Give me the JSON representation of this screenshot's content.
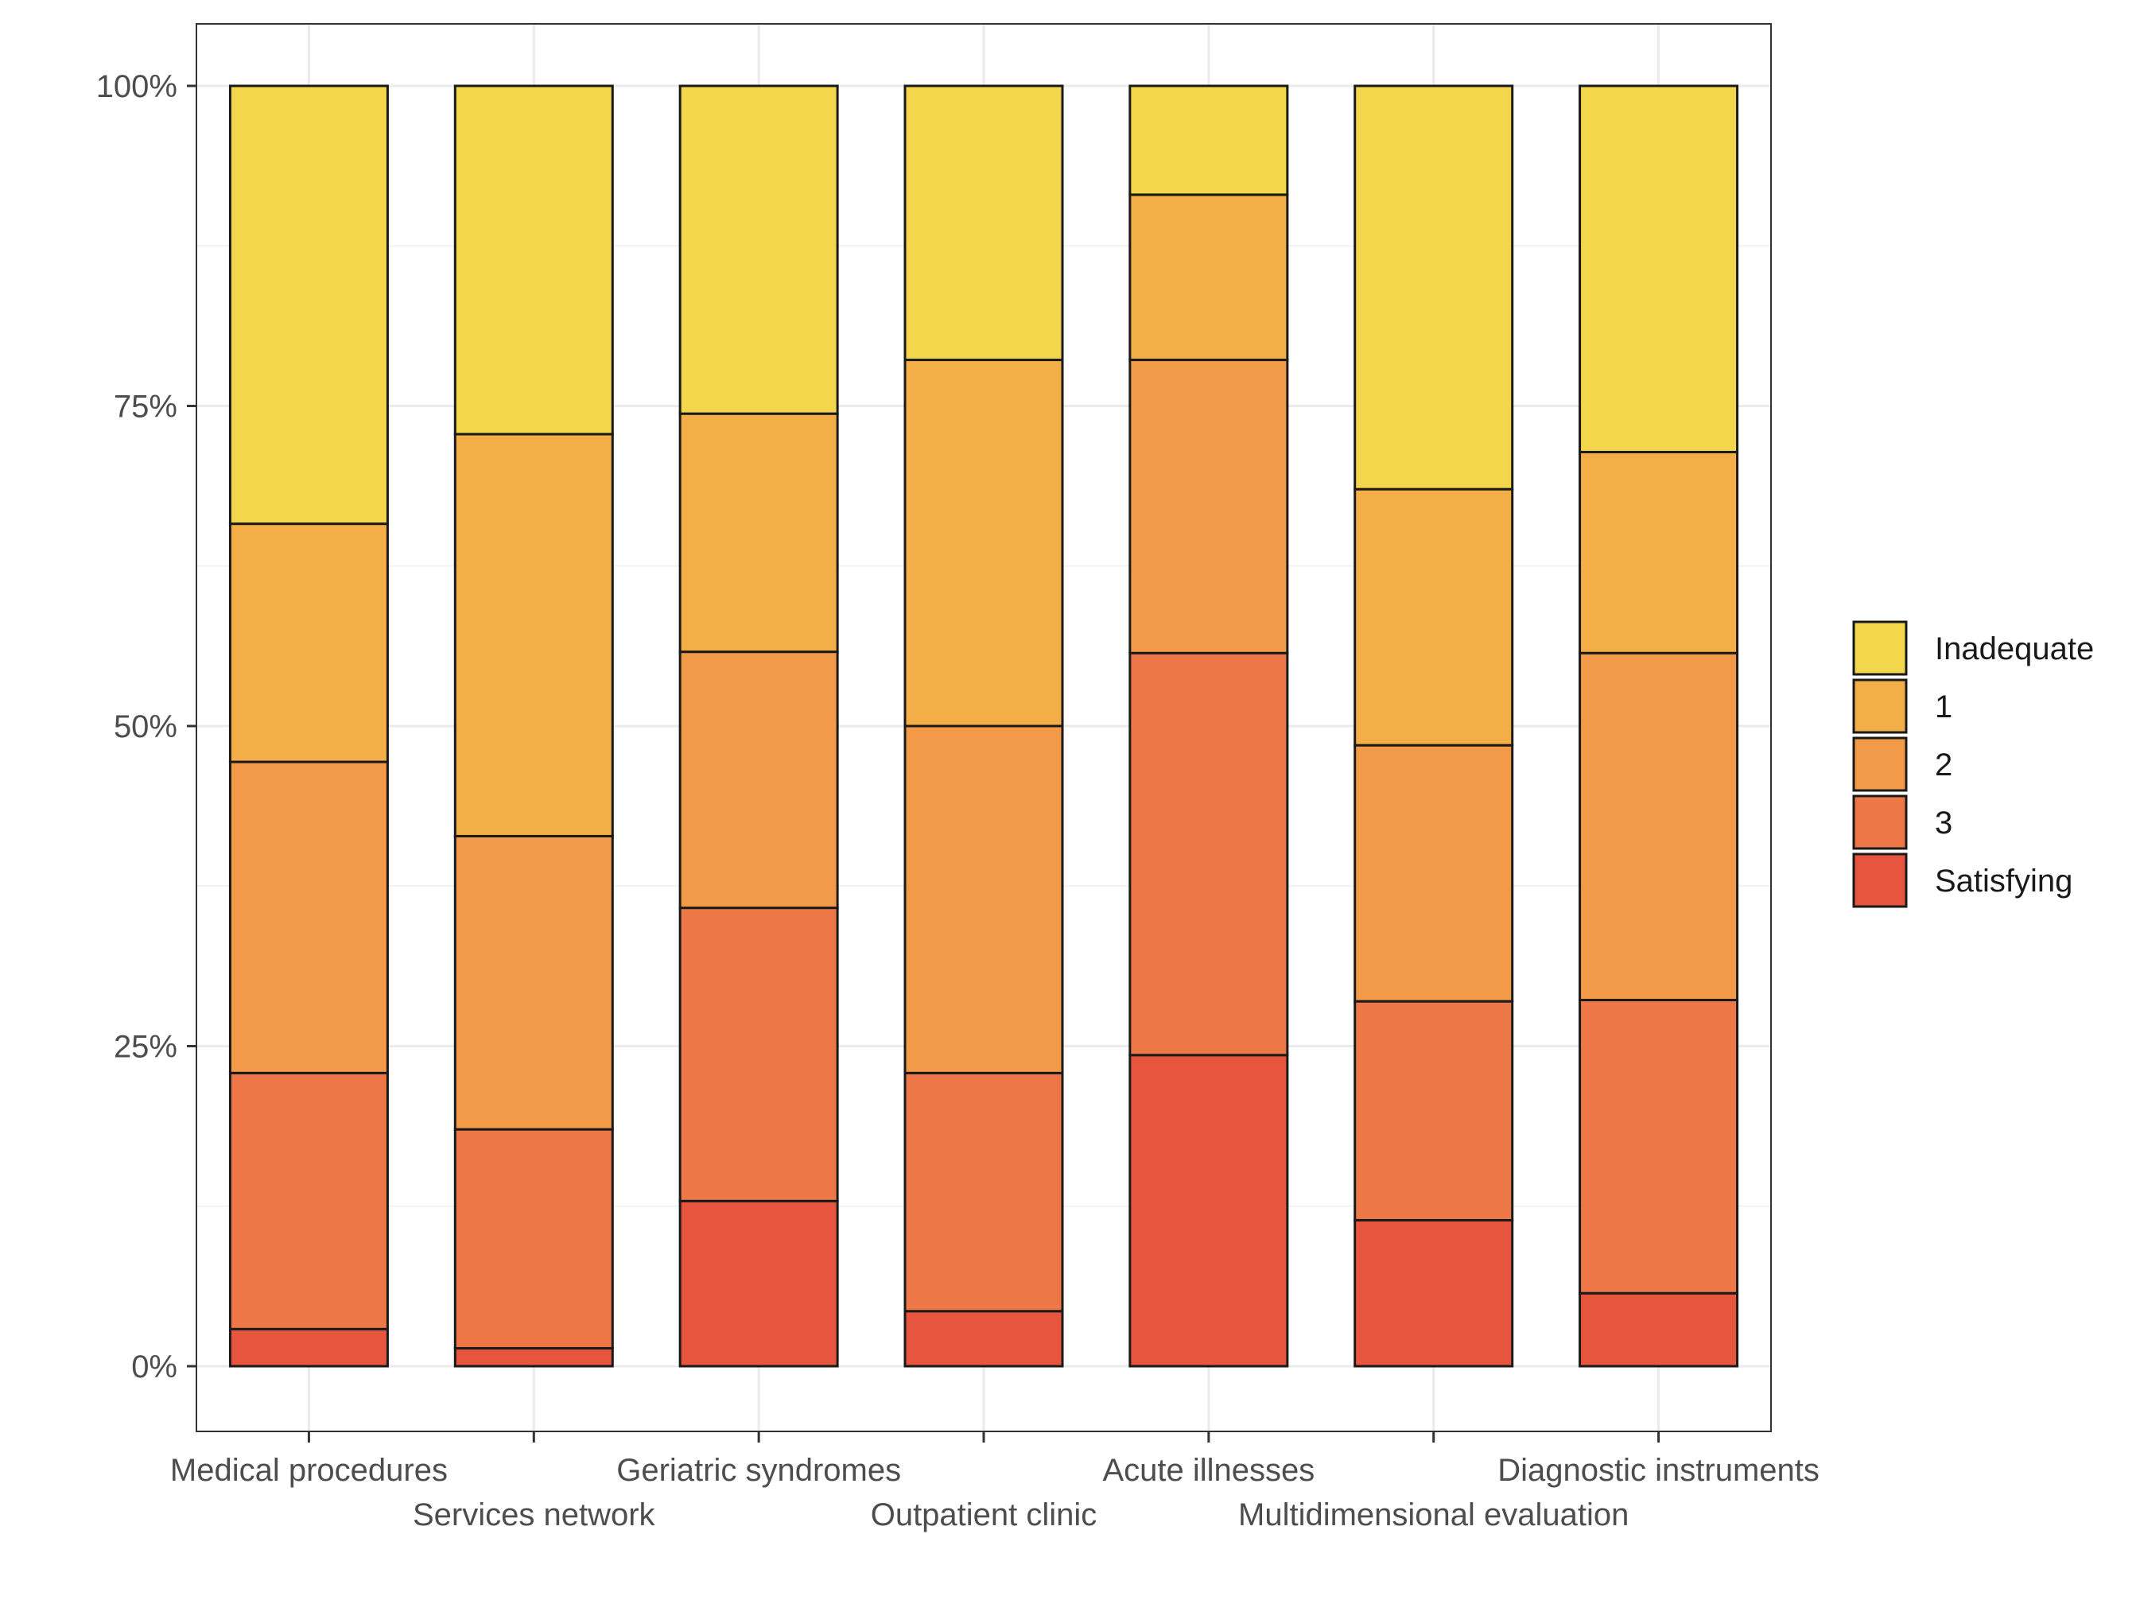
{
  "chart_data": {
    "type": "bar",
    "stacked": true,
    "percent": true,
    "title": "",
    "xlabel": "",
    "ylabel": "",
    "ylim": [
      0,
      100
    ],
    "y_ticks": [
      "0%",
      "25%",
      "50%",
      "75%",
      "100%"
    ],
    "grid": true,
    "legend_position": "right",
    "categories": [
      "Medical procedures",
      "Services network",
      "Geriatric syndromes",
      "Outpatient clinic",
      "Acute illnesses",
      "Multidimensional evaluation",
      "Diagnostic instruments"
    ],
    "series": [
      {
        "name": "Satisfying",
        "color": "#E8553F",
        "values": [
          2.9,
          1.4,
          12.9,
          4.3,
          24.3,
          11.4,
          5.7
        ]
      },
      {
        "name": "3",
        "color": "#EE7747",
        "values": [
          20.0,
          17.1,
          22.9,
          18.6,
          31.4,
          17.1,
          22.9
        ]
      },
      {
        "name": "2",
        "color": "#F29A48",
        "values": [
          24.3,
          22.9,
          20.0,
          27.1,
          22.9,
          20.0,
          27.1
        ]
      },
      {
        "name": "1",
        "color": "#F3AE47",
        "values": [
          18.6,
          31.4,
          18.6,
          28.6,
          12.9,
          20.0,
          15.7
        ]
      },
      {
        "name": "Inadequate",
        "color": "#F3D64B",
        "values": [
          34.2,
          27.2,
          25.6,
          21.4,
          8.5,
          31.5,
          28.6
        ]
      }
    ],
    "legend_order": [
      "Inadequate",
      "1",
      "2",
      "3",
      "Satisfying"
    ]
  }
}
